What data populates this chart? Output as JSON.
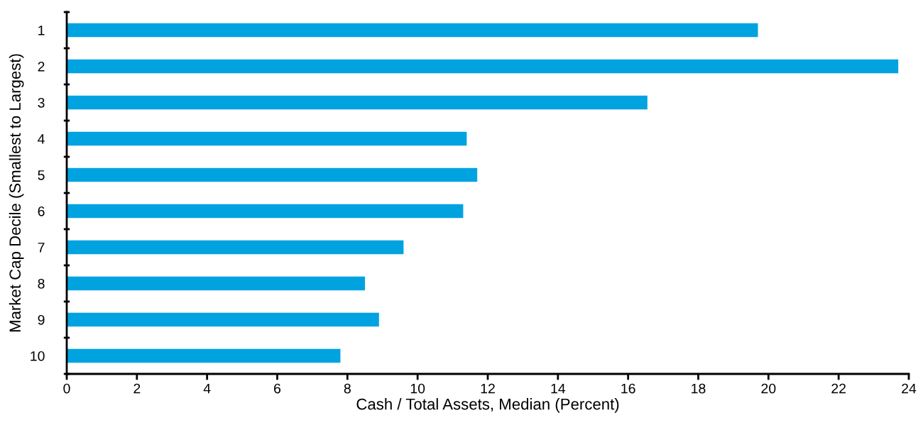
{
  "chart_data": {
    "type": "bar",
    "orientation": "horizontal",
    "xlabel": "Cash / Total Assets, Median (Percent)",
    "ylabel": "Market Cap Decile (Smallest to Largest)",
    "categories": [
      "1",
      "2",
      "3",
      "4",
      "5",
      "6",
      "7",
      "8",
      "9",
      "10"
    ],
    "values": [
      19.7,
      23.7,
      16.55,
      11.4,
      11.7,
      11.3,
      9.6,
      8.5,
      8.9,
      7.8
    ],
    "color": "#00a3e0",
    "xlim": [
      0,
      24
    ],
    "xticks": [
      0,
      2,
      4,
      6,
      8,
      10,
      12,
      14,
      16,
      18,
      20,
      22,
      24
    ],
    "grid": false,
    "legend": false
  }
}
